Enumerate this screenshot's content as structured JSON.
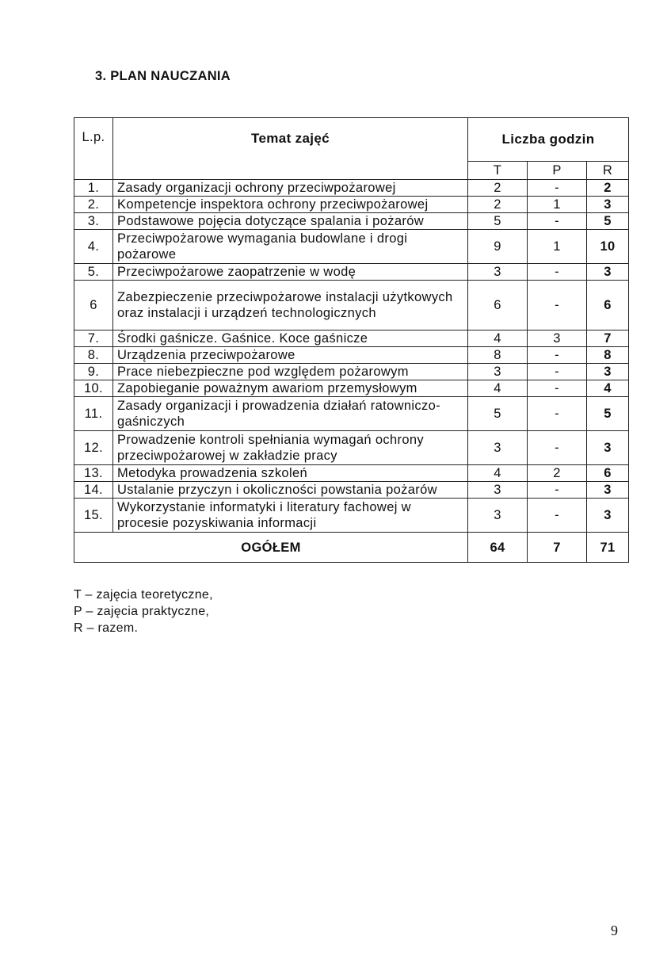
{
  "heading": "3. PLAN NAUCZANIA",
  "table": {
    "col_lp": "L.p.",
    "col_topic": "Temat  zajęć",
    "col_hours": "Liczba godzin",
    "sub_t": "T",
    "sub_p": "P",
    "sub_r": "R",
    "rows": [
      {
        "lp": "1.",
        "topic": "Zasady organizacji ochrony przeciwpożarowej",
        "t": "2",
        "p": "-",
        "r": "2"
      },
      {
        "lp": "2.",
        "topic": "Kompetencje inspektora ochrony przeciwpożarowej",
        "t": "2",
        "p": "1",
        "r": "3"
      },
      {
        "lp": "3.",
        "topic": "Podstawowe pojęcia dotyczące spalania i pożarów",
        "t": "5",
        "p": "-",
        "r": "5"
      },
      {
        "lp": "4.",
        "topic": "Przeciwpożarowe wymagania budowlane i drogi pożarowe",
        "t": "9",
        "p": "1",
        "r": "10"
      },
      {
        "lp": "5.",
        "topic": "Przeciwpożarowe zaopatrzenie w wodę",
        "t": "3",
        "p": "-",
        "r": "3"
      },
      {
        "lp": "6",
        "topic": "Zabezpieczenie przeciwpożarowe instalacji użytkowych oraz instalacji i urządzeń technologicznych",
        "t": "6",
        "p": "-",
        "r": "6"
      },
      {
        "lp": "7.",
        "topic": "Środki gaśnicze. Gaśnice. Koce gaśnicze",
        "t": "4",
        "p": "3",
        "r": "7"
      },
      {
        "lp": "8.",
        "topic": "Urządzenia przeciwpożarowe",
        "t": "8",
        "p": "-",
        "r": "8"
      },
      {
        "lp": "9.",
        "topic": "Prace niebezpieczne pod względem pożarowym",
        "t": "3",
        "p": "-",
        "r": "3"
      },
      {
        "lp": "10.",
        "topic": "Zapobieganie poważnym awariom przemysłowym",
        "t": "4",
        "p": "-",
        "r": "4"
      },
      {
        "lp": "11.",
        "topic": "Zasady organizacji i prowadzenia działań ratowniczo-gaśniczych",
        "t": "5",
        "p": "-",
        "r": "5"
      },
      {
        "lp": "12.",
        "topic": "Prowadzenie kontroli spełniania wymagań ochrony przeciwpożarowej w zakładzie pracy",
        "t": "3",
        "p": "-",
        "r": "3"
      },
      {
        "lp": "13.",
        "topic": "Metodyka prowadzenia szkoleń",
        "t": "4",
        "p": "2",
        "r": "6"
      },
      {
        "lp": "14.",
        "topic": "Ustalanie przyczyn i okoliczności powstania pożarów",
        "t": "3",
        "p": "-",
        "r": "3"
      },
      {
        "lp": "15.",
        "topic": "Wykorzystanie informatyki i literatury fachowej w procesie pozyskiwania informacji",
        "t": "3",
        "p": "-",
        "r": "3"
      }
    ],
    "total_label": "OGÓŁEM",
    "total_t": "64",
    "total_p": "7",
    "total_r": "71"
  },
  "legend": [
    "T – zajęcia teoretyczne,",
    "P – zajęcia praktyczne,",
    "R – razem."
  ],
  "page_number": "9"
}
